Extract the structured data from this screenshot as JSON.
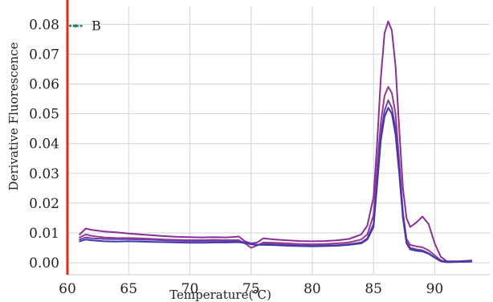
{
  "chart_data": {
    "type": "line",
    "xlabel": "Temperature(℃)",
    "ylabel": "Derivative  Fluorescence",
    "xlim": [
      60,
      94.5
    ],
    "ylim": [
      -0.004,
      0.086
    ],
    "x_ticks": [
      60,
      65,
      70,
      75,
      80,
      85,
      90
    ],
    "y_ticks": [
      "0.00",
      "0.01",
      "0.02",
      "0.03",
      "0.04",
      "0.05",
      "0.06",
      "0.07",
      "0.08"
    ],
    "grid": true,
    "legend": {
      "position": "top-left",
      "label": "B",
      "color": "#2e7d6e"
    },
    "axis_line_color": "#e0281e",
    "series": [
      {
        "color": "#8a2f9a",
        "x": [
          61,
          61.5,
          62,
          63,
          64,
          65,
          66,
          67,
          68,
          69,
          70,
          71,
          72,
          73,
          74,
          74.5,
          75,
          75.5,
          76,
          77,
          78,
          79,
          80,
          81,
          82,
          83,
          84,
          84.5,
          85,
          85.3,
          85.6,
          85.9,
          86.2,
          86.5,
          86.8,
          87.1,
          87.4,
          87.7,
          88,
          88.5,
          89,
          89.5,
          90,
          90.5,
          91,
          92,
          93
        ],
        "y": [
          0.0095,
          0.0115,
          0.011,
          0.0105,
          0.0102,
          0.0098,
          0.0095,
          0.0092,
          0.0089,
          0.0087,
          0.0086,
          0.0085,
          0.0086,
          0.0085,
          0.0088,
          0.0072,
          0.0065,
          0.0068,
          0.0082,
          0.0078,
          0.0075,
          0.0073,
          0.0072,
          0.0073,
          0.0075,
          0.008,
          0.0095,
          0.0125,
          0.022,
          0.04,
          0.062,
          0.077,
          0.081,
          0.078,
          0.066,
          0.045,
          0.025,
          0.015,
          0.012,
          0.0135,
          0.0155,
          0.013,
          0.0065,
          0.002,
          0.0005,
          0.0005,
          0.0008
        ]
      },
      {
        "color": "#9b3a86",
        "x": [
          61,
          61.5,
          62,
          63,
          64,
          65,
          66,
          67,
          68,
          69,
          70,
          71,
          72,
          73,
          74,
          74.5,
          75,
          75.5,
          76,
          77,
          78,
          79,
          80,
          81,
          82,
          83,
          84,
          84.5,
          85,
          85.3,
          85.6,
          85.9,
          86.2,
          86.5,
          86.8,
          87.1,
          87.4,
          87.7,
          88,
          88.5,
          89,
          89.5,
          90,
          90.5,
          91,
          92,
          93
        ],
        "y": [
          0.0085,
          0.0095,
          0.009,
          0.0085,
          0.0083,
          0.0083,
          0.0082,
          0.008,
          0.0078,
          0.0077,
          0.0076,
          0.0076,
          0.0077,
          0.0076,
          0.0076,
          0.0065,
          0.005,
          0.0058,
          0.0068,
          0.0067,
          0.0065,
          0.0063,
          0.0062,
          0.0063,
          0.0065,
          0.0068,
          0.0078,
          0.0095,
          0.016,
          0.032,
          0.047,
          0.056,
          0.059,
          0.057,
          0.05,
          0.034,
          0.017,
          0.008,
          0.006,
          0.0055,
          0.0052,
          0.0042,
          0.0025,
          0.0008,
          0.0003,
          0.0004,
          0.0006
        ]
      },
      {
        "color": "#6a3fb0",
        "x": [
          61,
          61.5,
          62,
          63,
          64,
          65,
          66,
          67,
          68,
          69,
          70,
          71,
          72,
          73,
          74,
          74.5,
          75,
          75.5,
          76,
          77,
          78,
          79,
          80,
          81,
          82,
          83,
          84,
          84.5,
          85,
          85.3,
          85.6,
          85.9,
          86.2,
          86.5,
          86.8,
          87.1,
          87.4,
          87.7,
          88,
          88.5,
          89,
          89.5,
          90,
          90.5,
          91,
          92,
          93
        ],
        "y": [
          0.0078,
          0.0085,
          0.0082,
          0.008,
          0.0079,
          0.0079,
          0.0078,
          0.0077,
          0.0075,
          0.0074,
          0.0073,
          0.0073,
          0.0074,
          0.0073,
          0.0072,
          0.0068,
          0.0065,
          0.006,
          0.0063,
          0.0062,
          0.006,
          0.0058,
          0.0057,
          0.0058,
          0.0059,
          0.0062,
          0.0068,
          0.0082,
          0.013,
          0.028,
          0.043,
          0.051,
          0.0545,
          0.052,
          0.045,
          0.032,
          0.016,
          0.007,
          0.005,
          0.0045,
          0.0042,
          0.0032,
          0.0018,
          0.0006,
          0.0002,
          0.0003,
          0.0005
        ]
      },
      {
        "color": "#3f3aa8",
        "x": [
          61,
          61.5,
          62,
          63,
          64,
          65,
          66,
          67,
          68,
          69,
          70,
          71,
          72,
          73,
          74,
          74.5,
          75,
          75.5,
          76,
          77,
          78,
          79,
          80,
          81,
          82,
          83,
          84,
          84.5,
          85,
          85.3,
          85.6,
          85.9,
          86.2,
          86.5,
          86.8,
          87.1,
          87.4,
          87.7,
          88,
          88.5,
          89,
          89.5,
          90,
          90.5,
          91,
          92,
          93
        ],
        "y": [
          0.0072,
          0.0078,
          0.0075,
          0.0072,
          0.0071,
          0.0072,
          0.0071,
          0.007,
          0.0069,
          0.0068,
          0.0067,
          0.0067,
          0.0068,
          0.0068,
          0.0069,
          0.0066,
          0.0062,
          0.006,
          0.006,
          0.0059,
          0.0057,
          0.0056,
          0.0055,
          0.0056,
          0.0057,
          0.006,
          0.0065,
          0.0078,
          0.012,
          0.026,
          0.041,
          0.049,
          0.052,
          0.05,
          0.043,
          0.03,
          0.015,
          0.0065,
          0.0045,
          0.004,
          0.0038,
          0.003,
          0.0017,
          0.0005,
          0.0002,
          0.0003,
          0.0004
        ]
      }
    ]
  }
}
